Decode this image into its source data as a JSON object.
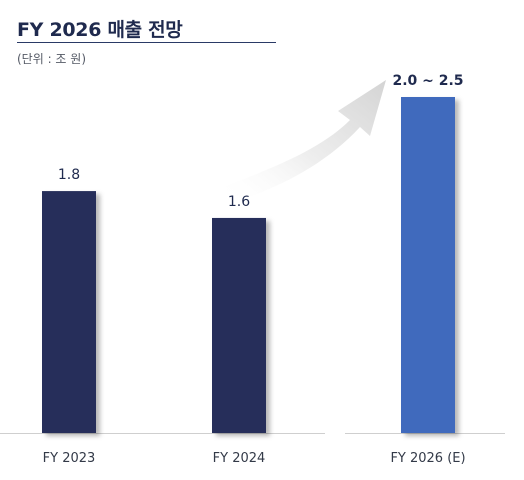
{
  "title": "FY 2026 매출 전망",
  "unit_note": "(단위 : 조 원)",
  "colors": {
    "title": "#1f2a4e",
    "bar_actual": "#262f5a",
    "bar_forecast": "#3f6bbd",
    "arrow": "#d9d9d9",
    "axis": "#cfcfcf"
  },
  "chart_data": {
    "type": "bar",
    "title": "FY 2026 매출 전망",
    "xlabel": "",
    "ylabel": "",
    "unit": "조 원",
    "ylim": [
      0,
      2.5
    ],
    "grid": false,
    "categories": [
      "FY 2023",
      "FY 2024",
      "FY 2026 (E)"
    ],
    "values": [
      1.8,
      1.6,
      2.5
    ],
    "value_labels": [
      "1.8",
      "1.6",
      "2.0 ~ 2.5"
    ],
    "range_low": [
      null,
      null,
      2.0
    ],
    "highlight": [
      false,
      false,
      true
    ],
    "annotations": [
      "upward growth arrow pointing to FY 2026 (E)"
    ]
  }
}
